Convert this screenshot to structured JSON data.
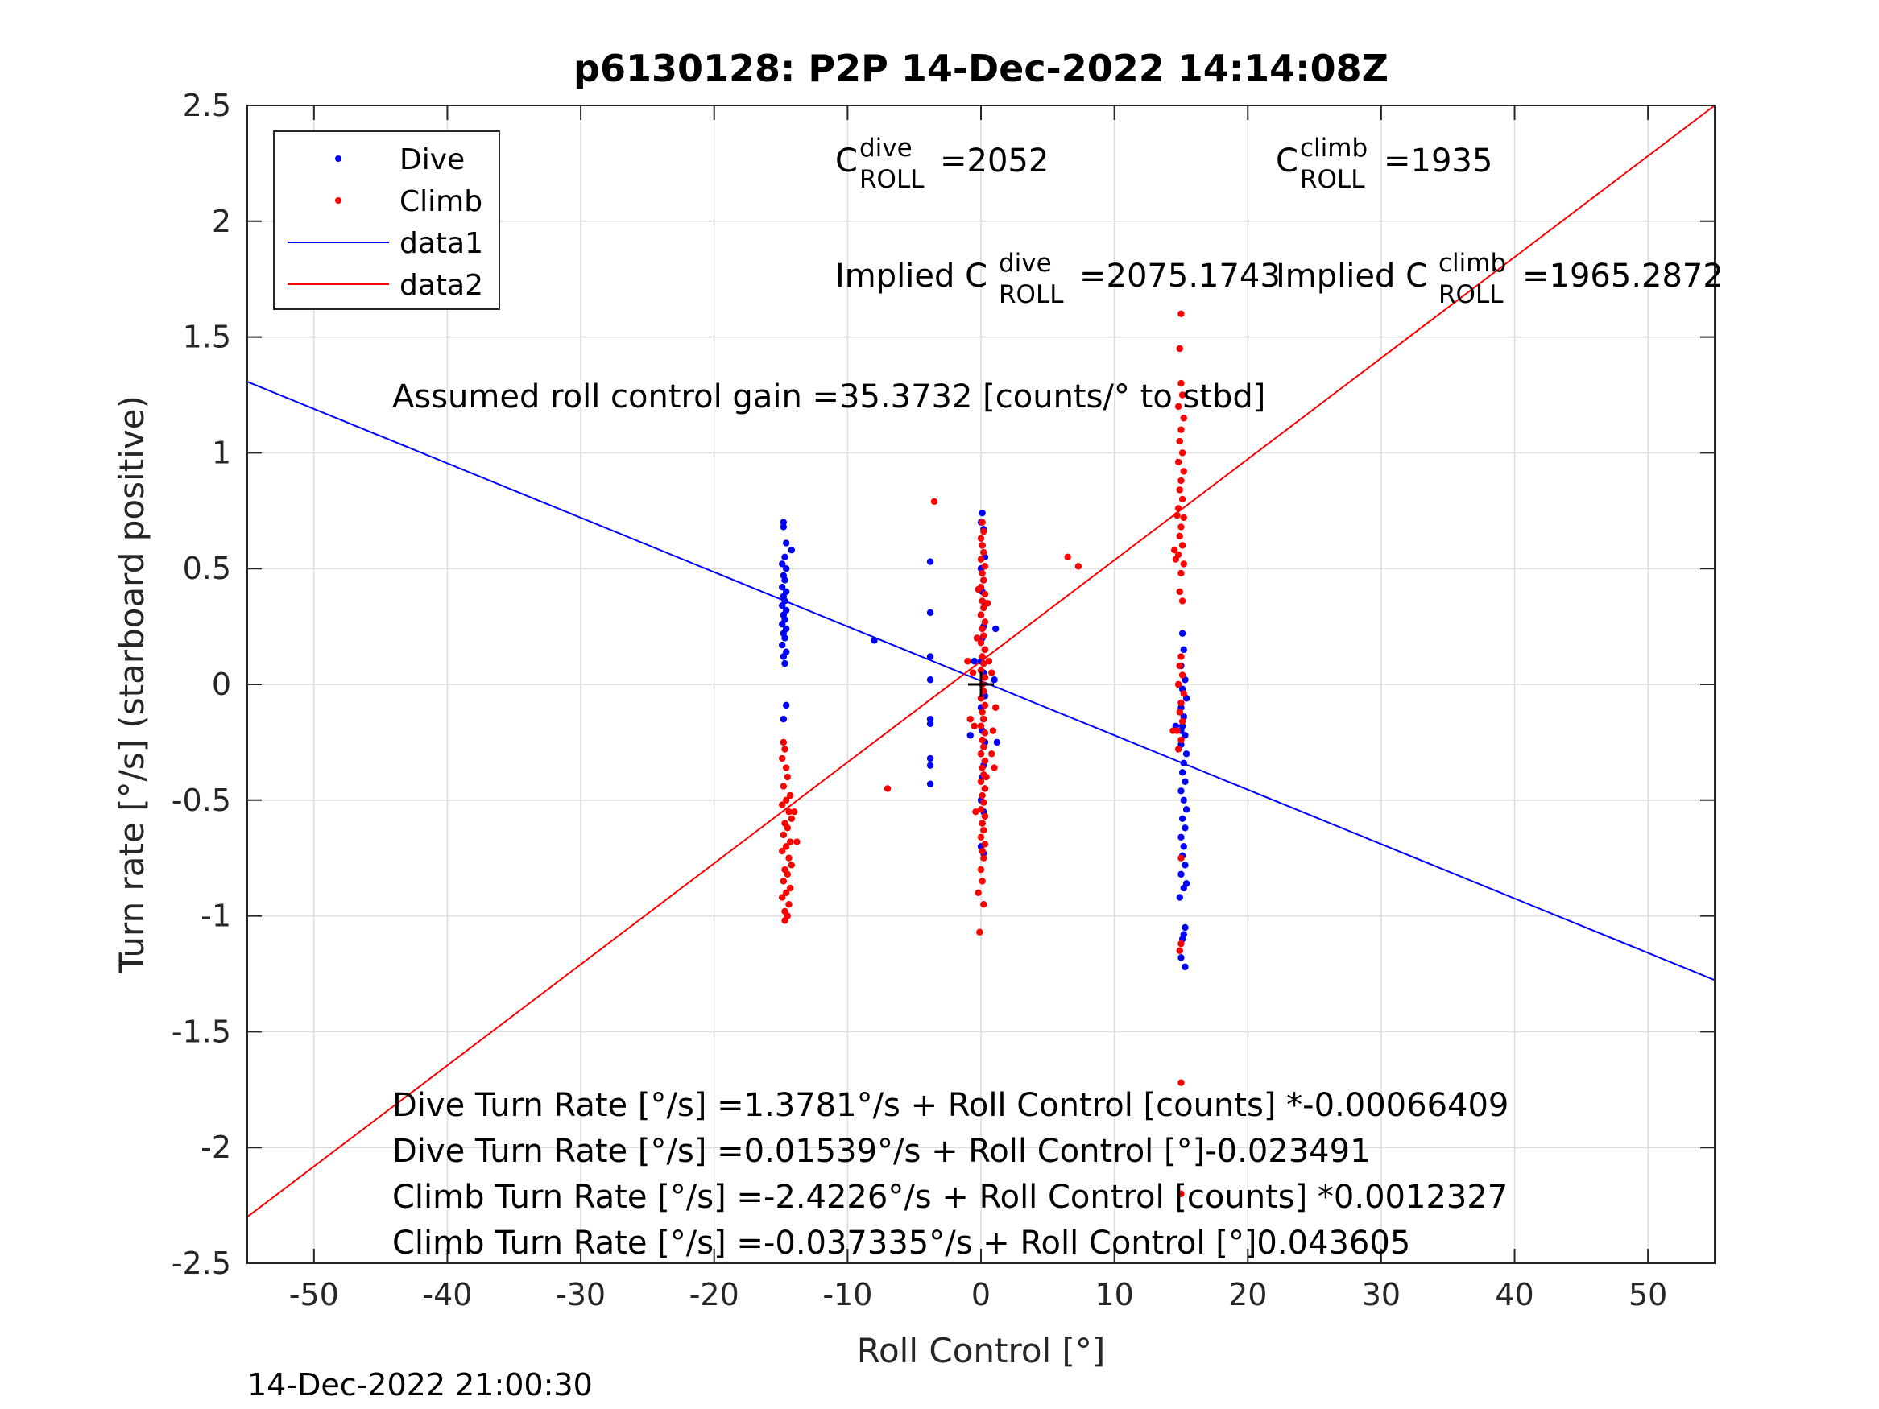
{
  "chart_data": {
    "type": "scatter",
    "title": "p6130128: P2P 14-Dec-2022 14:14:08Z",
    "xlabel": "Roll Control [°]",
    "ylabel": "Turn rate [°/s] (starboard positive)",
    "xlim": [
      -55,
      55
    ],
    "ylim": [
      -2.5,
      2.5
    ],
    "xticks": [
      -50,
      -40,
      -30,
      -20,
      -10,
      0,
      10,
      20,
      30,
      40,
      50
    ],
    "xtick_labels": [
      "-50",
      "-40",
      "-30",
      "-20",
      "-10",
      "0",
      "10",
      "20",
      "30",
      "40",
      "50"
    ],
    "yticks": [
      -2.5,
      -2,
      -1.5,
      -1,
      -0.5,
      0,
      0.5,
      1,
      1.5,
      2,
      2.5
    ],
    "ytick_labels": [
      "-2.5",
      "-2",
      "-1.5",
      "-1",
      "-0.5",
      "0",
      "0.5",
      "1",
      "1.5",
      "2",
      "2.5"
    ],
    "grid": true,
    "legend_position": "top-left",
    "timestamp": "14-Dec-2022 21:00:30",
    "colors": {
      "dive": "#0000ff",
      "climb": "#ff0000",
      "cross": "#000000"
    },
    "legend": [
      {
        "label": "Dive",
        "kind": "marker",
        "color": "#0000ff"
      },
      {
        "label": "Climb",
        "kind": "marker",
        "color": "#ff0000"
      },
      {
        "label": "data1",
        "kind": "line",
        "color": "#0000ff"
      },
      {
        "label": "data2",
        "kind": "line",
        "color": "#ff0000"
      }
    ],
    "lines": [
      {
        "name": "data1",
        "color": "#0000ff",
        "points": [
          [
            -55,
            1.307
          ],
          [
            55,
            -1.277
          ]
        ]
      },
      {
        "name": "data2",
        "color": "#ff0000",
        "points": [
          [
            -55,
            -2.3
          ],
          [
            55,
            2.5
          ]
        ]
      }
    ],
    "cross_marker": [
      0,
      0
    ],
    "annotations": {
      "c_dive": {
        "base": "C",
        "sup": "dive",
        "sub": "ROLL",
        "value": "=2052"
      },
      "c_climb": {
        "base": "C",
        "sup": "climb",
        "sub": "ROLL",
        "value": "=1935"
      },
      "implied_dive": {
        "base": "Implied C",
        "sup": "dive",
        "sub": "ROLL",
        "value": "=2075.1743"
      },
      "implied_climb": {
        "base": "Implied C",
        "sup": "climb",
        "sub": "ROLL",
        "value": "=1965.2872"
      },
      "gain": "Assumed roll control gain =35.3732 [counts/° to stbd]",
      "eq1": "Dive Turn Rate [°/s] =1.3781°/s + Roll Control [counts] *-0.00066409",
      "eq2": "Dive Turn Rate [°/s] =0.01539°/s + Roll Control [°]-0.023491",
      "eq3": "Climb Turn Rate [°/s] =-2.4226°/s + Roll Control [counts] *0.0012327",
      "eq4": "Climb Turn Rate [°/s] =-0.037335°/s + Roll Control [°]0.043605"
    },
    "series": [
      {
        "name": "Dive",
        "color": "#0000ff",
        "points": [
          [
            -14.8,
            0.7
          ],
          [
            -14.8,
            0.68
          ],
          [
            -14.6,
            0.61
          ],
          [
            -14.2,
            0.58
          ],
          [
            -14.7,
            0.55
          ],
          [
            -14.9,
            0.52
          ],
          [
            -14.6,
            0.5
          ],
          [
            -14.8,
            0.47
          ],
          [
            -14.7,
            0.45
          ],
          [
            -14.9,
            0.42
          ],
          [
            -14.6,
            0.4
          ],
          [
            -14.8,
            0.38
          ],
          [
            -14.7,
            0.36
          ],
          [
            -14.9,
            0.34
          ],
          [
            -14.6,
            0.32
          ],
          [
            -14.8,
            0.3
          ],
          [
            -14.7,
            0.28
          ],
          [
            -14.9,
            0.26
          ],
          [
            -14.6,
            0.24
          ],
          [
            -14.8,
            0.22
          ],
          [
            -14.7,
            0.2
          ],
          [
            -14.9,
            0.17
          ],
          [
            -14.6,
            0.14
          ],
          [
            -14.8,
            0.12
          ],
          [
            -14.7,
            0.09
          ],
          [
            -14.6,
            -0.09
          ],
          [
            -14.8,
            -0.15
          ],
          [
            -8,
            0.19
          ],
          [
            -3.8,
            0.53
          ],
          [
            -3.8,
            0.31
          ],
          [
            -3.8,
            0.12
          ],
          [
            -3.8,
            0.02
          ],
          [
            -3.8,
            -0.15
          ],
          [
            -3.8,
            -0.17
          ],
          [
            -3.8,
            -0.32
          ],
          [
            -3.8,
            -0.35
          ],
          [
            -3.8,
            -0.43
          ],
          [
            0.1,
            0.74
          ],
          [
            0.0,
            0.7
          ],
          [
            0.2,
            0.67
          ],
          [
            0.1,
            0.6
          ],
          [
            0.3,
            0.55
          ],
          [
            0.0,
            0.5
          ],
          [
            0.2,
            0.45
          ],
          [
            0.1,
            0.4
          ],
          [
            0.3,
            0.35
          ],
          [
            0.0,
            0.3
          ],
          [
            0.2,
            0.25
          ],
          [
            0.1,
            0.2
          ],
          [
            0.3,
            0.15
          ],
          [
            0.0,
            0.1
          ],
          [
            0.2,
            0.05
          ],
          [
            0.1,
            0.0
          ],
          [
            0.3,
            -0.05
          ],
          [
            0.0,
            -0.1
          ],
          [
            0.2,
            -0.15
          ],
          [
            0.1,
            -0.2
          ],
          [
            0.3,
            -0.25
          ],
          [
            0.0,
            -0.3
          ],
          [
            0.2,
            -0.35
          ],
          [
            0.1,
            -0.4
          ],
          [
            0.3,
            -0.45
          ],
          [
            0.0,
            -0.5
          ],
          [
            0.2,
            -0.55
          ],
          [
            0.1,
            -0.6
          ],
          [
            0.0,
            -0.7
          ],
          [
            0.2,
            -0.73
          ],
          [
            -0.8,
            -0.22
          ],
          [
            1.1,
            0.24
          ],
          [
            1.2,
            -0.25
          ],
          [
            1.0,
            0.02
          ],
          [
            -0.5,
            0.1
          ],
          [
            14.6,
            -0.18
          ],
          [
            15.0,
            -0.2
          ],
          [
            15.1,
            0.22
          ],
          [
            15.2,
            0.15
          ],
          [
            15.0,
            0.08
          ],
          [
            15.3,
            0.02
          ],
          [
            15.1,
            -0.02
          ],
          [
            15.4,
            -0.06
          ],
          [
            15.0,
            -0.1
          ],
          [
            15.2,
            -0.14
          ],
          [
            15.1,
            -0.18
          ],
          [
            15.3,
            -0.22
          ],
          [
            15.0,
            -0.26
          ],
          [
            15.4,
            -0.3
          ],
          [
            15.2,
            -0.34
          ],
          [
            15.1,
            -0.38
          ],
          [
            15.3,
            -0.42
          ],
          [
            15.0,
            -0.46
          ],
          [
            15.2,
            -0.5
          ],
          [
            15.4,
            -0.54
          ],
          [
            15.1,
            -0.58
          ],
          [
            15.3,
            -0.62
          ],
          [
            15.0,
            -0.66
          ],
          [
            15.2,
            -0.7
          ],
          [
            15.1,
            -0.74
          ],
          [
            15.3,
            -0.78
          ],
          [
            15.0,
            -0.82
          ],
          [
            15.2,
            -0.88
          ],
          [
            15.4,
            -0.86
          ],
          [
            14.9,
            -0.92
          ],
          [
            15.3,
            -1.05
          ],
          [
            15.2,
            -1.08
          ],
          [
            15.1,
            -1.1
          ],
          [
            15.0,
            -1.18
          ],
          [
            15.3,
            -1.22
          ]
        ]
      },
      {
        "name": "Climb",
        "color": "#ff0000",
        "points": [
          [
            -14.8,
            -0.25
          ],
          [
            -14.7,
            -0.28
          ],
          [
            -14.9,
            -0.32
          ],
          [
            -14.6,
            -0.36
          ],
          [
            -14.5,
            -0.4
          ],
          [
            -14.8,
            -0.44
          ],
          [
            -14.3,
            -0.48
          ],
          [
            -14.6,
            -0.5
          ],
          [
            -14.9,
            -0.52
          ],
          [
            -14.4,
            -0.55
          ],
          [
            -14.2,
            -0.58
          ],
          [
            -14.7,
            -0.6
          ],
          [
            -14.5,
            -0.62
          ],
          [
            -14.8,
            -0.65
          ],
          [
            -14.3,
            -0.68
          ],
          [
            -14.6,
            -0.7
          ],
          [
            -14.9,
            -0.72
          ],
          [
            -14.4,
            -0.75
          ],
          [
            -14.2,
            -0.78
          ],
          [
            -14.7,
            -0.8
          ],
          [
            -14.5,
            -0.82
          ],
          [
            -14.8,
            -0.85
          ],
          [
            -14.3,
            -0.88
          ],
          [
            -14.6,
            -0.9
          ],
          [
            -14.9,
            -0.92
          ],
          [
            -14.4,
            -0.95
          ],
          [
            -14.7,
            -0.98
          ],
          [
            -14.5,
            -1.0
          ],
          [
            -14.7,
            -1.02
          ],
          [
            -14.0,
            -0.55
          ],
          [
            -13.8,
            -0.68
          ],
          [
            -7,
            -0.45
          ],
          [
            -3.5,
            0.79
          ],
          [
            6.5,
            0.55
          ],
          [
            7.3,
            0.51
          ],
          [
            0.0,
            0.63
          ],
          [
            0.1,
            0.6
          ],
          [
            0.2,
            0.57
          ],
          [
            0.0,
            0.54
          ],
          [
            0.3,
            0.51
          ],
          [
            0.1,
            0.48
          ],
          [
            0.2,
            0.45
          ],
          [
            0.0,
            0.42
          ],
          [
            0.3,
            0.39
          ],
          [
            0.1,
            0.36
          ],
          [
            0.2,
            0.33
          ],
          [
            0.0,
            0.3
          ],
          [
            0.3,
            0.27
          ],
          [
            0.1,
            0.24
          ],
          [
            0.2,
            0.21
          ],
          [
            0.0,
            0.18
          ],
          [
            0.3,
            0.15
          ],
          [
            0.1,
            0.12
          ],
          [
            0.2,
            0.09
          ],
          [
            0.0,
            0.06
          ],
          [
            0.3,
            0.03
          ],
          [
            0.1,
            0.0
          ],
          [
            0.2,
            -0.03
          ],
          [
            0.0,
            -0.06
          ],
          [
            0.3,
            -0.09
          ],
          [
            0.1,
            -0.12
          ],
          [
            0.2,
            -0.15
          ],
          [
            0.0,
            -0.18
          ],
          [
            0.3,
            -0.21
          ],
          [
            0.1,
            -0.24
          ],
          [
            0.2,
            -0.27
          ],
          [
            0.0,
            -0.3
          ],
          [
            0.3,
            -0.33
          ],
          [
            0.1,
            -0.36
          ],
          [
            0.2,
            -0.39
          ],
          [
            0.0,
            -0.42
          ],
          [
            0.3,
            -0.45
          ],
          [
            0.1,
            -0.48
          ],
          [
            0.2,
            -0.51
          ],
          [
            0.0,
            -0.54
          ],
          [
            0.3,
            -0.57
          ],
          [
            0.1,
            -0.6
          ],
          [
            0.2,
            -0.63
          ],
          [
            0.0,
            -0.66
          ],
          [
            0.3,
            -0.69
          ],
          [
            0.1,
            -0.72
          ],
          [
            0.2,
            -0.75
          ],
          [
            0.0,
            -0.8
          ],
          [
            0.1,
            -0.85
          ],
          [
            -0.2,
            -0.9
          ],
          [
            0.2,
            -0.95
          ],
          [
            -0.1,
            -1.07
          ],
          [
            -0.4,
            -0.55
          ],
          [
            -0.6,
            0.05
          ],
          [
            -0.8,
            -0.15
          ],
          [
            -0.5,
            -0.18
          ],
          [
            -1.0,
            0.1
          ],
          [
            0.8,
            -0.3
          ],
          [
            1.0,
            -0.36
          ],
          [
            0.9,
            -0.2
          ],
          [
            0.6,
            0.1
          ],
          [
            1.1,
            -0.1
          ],
          [
            0.8,
            0.05
          ],
          [
            -0.3,
            0.2
          ],
          [
            0.5,
            0.35
          ],
          [
            -0.2,
            0.41
          ],
          [
            0.4,
            -0.4
          ],
          [
            0.1,
            0.7
          ],
          [
            0.2,
            0.66
          ],
          [
            15.0,
            1.6
          ],
          [
            14.9,
            1.45
          ],
          [
            15.0,
            1.3
          ],
          [
            15.1,
            1.25
          ],
          [
            14.8,
            1.2
          ],
          [
            15.2,
            1.15
          ],
          [
            15.0,
            1.1
          ],
          [
            14.9,
            1.05
          ],
          [
            15.1,
            1.0
          ],
          [
            14.8,
            0.96
          ],
          [
            15.2,
            0.92
          ],
          [
            15.0,
            0.88
          ],
          [
            14.9,
            0.84
          ],
          [
            15.1,
            0.8
          ],
          [
            14.8,
            0.76
          ],
          [
            15.2,
            0.72
          ],
          [
            15.0,
            0.68
          ],
          [
            14.9,
            0.64
          ],
          [
            15.1,
            0.6
          ],
          [
            14.8,
            0.56
          ],
          [
            14.5,
            0.58
          ],
          [
            14.6,
            0.54
          ],
          [
            15.2,
            0.52
          ],
          [
            15.0,
            0.48
          ],
          [
            14.9,
            0.4
          ],
          [
            15.1,
            0.36
          ],
          [
            14.7,
            0.73
          ],
          [
            15.0,
            0.12
          ],
          [
            14.9,
            0.08
          ],
          [
            15.1,
            0.04
          ],
          [
            14.8,
            0.0
          ],
          [
            15.2,
            -0.04
          ],
          [
            15.0,
            -0.08
          ],
          [
            14.9,
            -0.12
          ],
          [
            15.1,
            -0.16
          ],
          [
            14.7,
            -0.2
          ],
          [
            15.0,
            -0.24
          ],
          [
            14.8,
            -0.28
          ],
          [
            14.4,
            -0.2
          ],
          [
            15.0,
            -0.75
          ],
          [
            15.0,
            -1.12
          ],
          [
            14.9,
            -1.15
          ],
          [
            15.0,
            -1.72
          ],
          [
            15.0,
            -2.2
          ]
        ]
      }
    ]
  }
}
